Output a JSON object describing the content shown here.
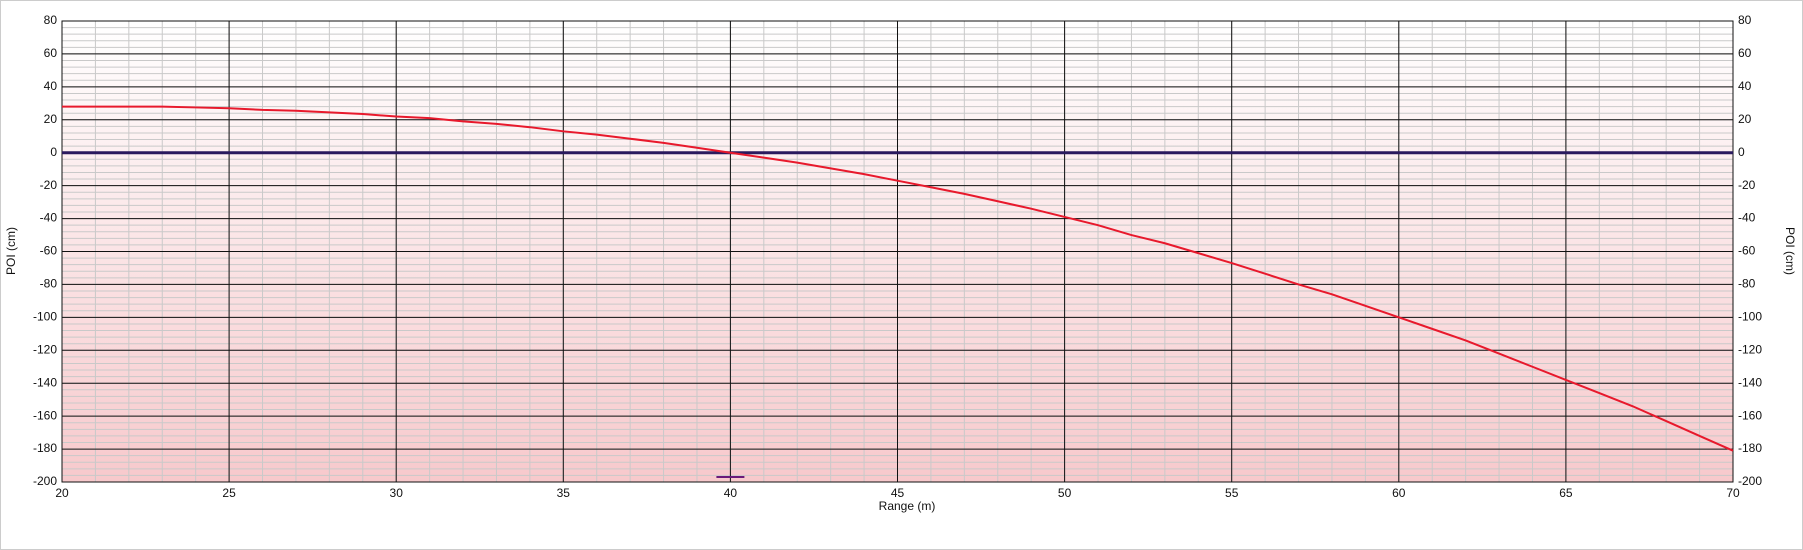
{
  "chart_data": {
    "type": "line",
    "xlabel": "Range (m)",
    "ylabel": "POI (cm)",
    "y2label": "POI (cm)",
    "x": [
      20,
      21,
      22,
      23,
      24,
      25,
      26,
      27,
      28,
      29,
      30,
      31,
      32,
      33,
      34,
      35,
      36,
      37,
      38,
      39,
      40,
      41,
      42,
      43,
      44,
      45,
      46,
      47,
      48,
      49,
      50,
      51,
      52,
      53,
      54,
      55,
      56,
      57,
      58,
      59,
      60,
      61,
      62,
      63,
      64,
      65,
      66,
      67,
      68,
      69,
      70
    ],
    "series": [
      {
        "color": "#e8192c",
        "values": [
          28,
          28,
          28,
          28,
          27.5,
          27,
          26,
          25.5,
          24.5,
          23.5,
          22,
          21,
          19,
          17.5,
          15.5,
          13,
          11,
          8.5,
          6,
          3,
          0,
          -3,
          -6,
          -9.5,
          -13,
          -17,
          -21,
          -25,
          -29.5,
          -34,
          -39,
          -44,
          -50,
          -55,
          -61,
          -67,
          -73.5,
          -80,
          -86,
          -93,
          -100,
          -107,
          -114,
          -122,
          -130,
          -138,
          -146,
          -154,
          -163,
          -172,
          -181
        ]
      }
    ],
    "zero_line": {
      "y": 0,
      "color": "#2a1a5e"
    },
    "marker": {
      "x": 40,
      "y": -197,
      "color": "#6a1a7a"
    },
    "xlim": [
      20,
      70
    ],
    "xticks": [
      20,
      25,
      30,
      35,
      40,
      45,
      50,
      55,
      60,
      65,
      70
    ],
    "ylim": [
      -200,
      80
    ],
    "yticks": [
      -200,
      -180,
      -160,
      -140,
      -120,
      -100,
      -80,
      -60,
      -40,
      -20,
      0,
      20,
      40,
      60,
      80
    ],
    "y2lim": [
      -200,
      80
    ],
    "y2ticks": [
      -200,
      -180,
      -160,
      -140,
      -120,
      -100,
      -80,
      -60,
      -40,
      -20,
      0,
      20,
      40,
      60,
      80
    ],
    "grid": true,
    "minor_grid": {
      "x": 1,
      "y": 4
    }
  }
}
